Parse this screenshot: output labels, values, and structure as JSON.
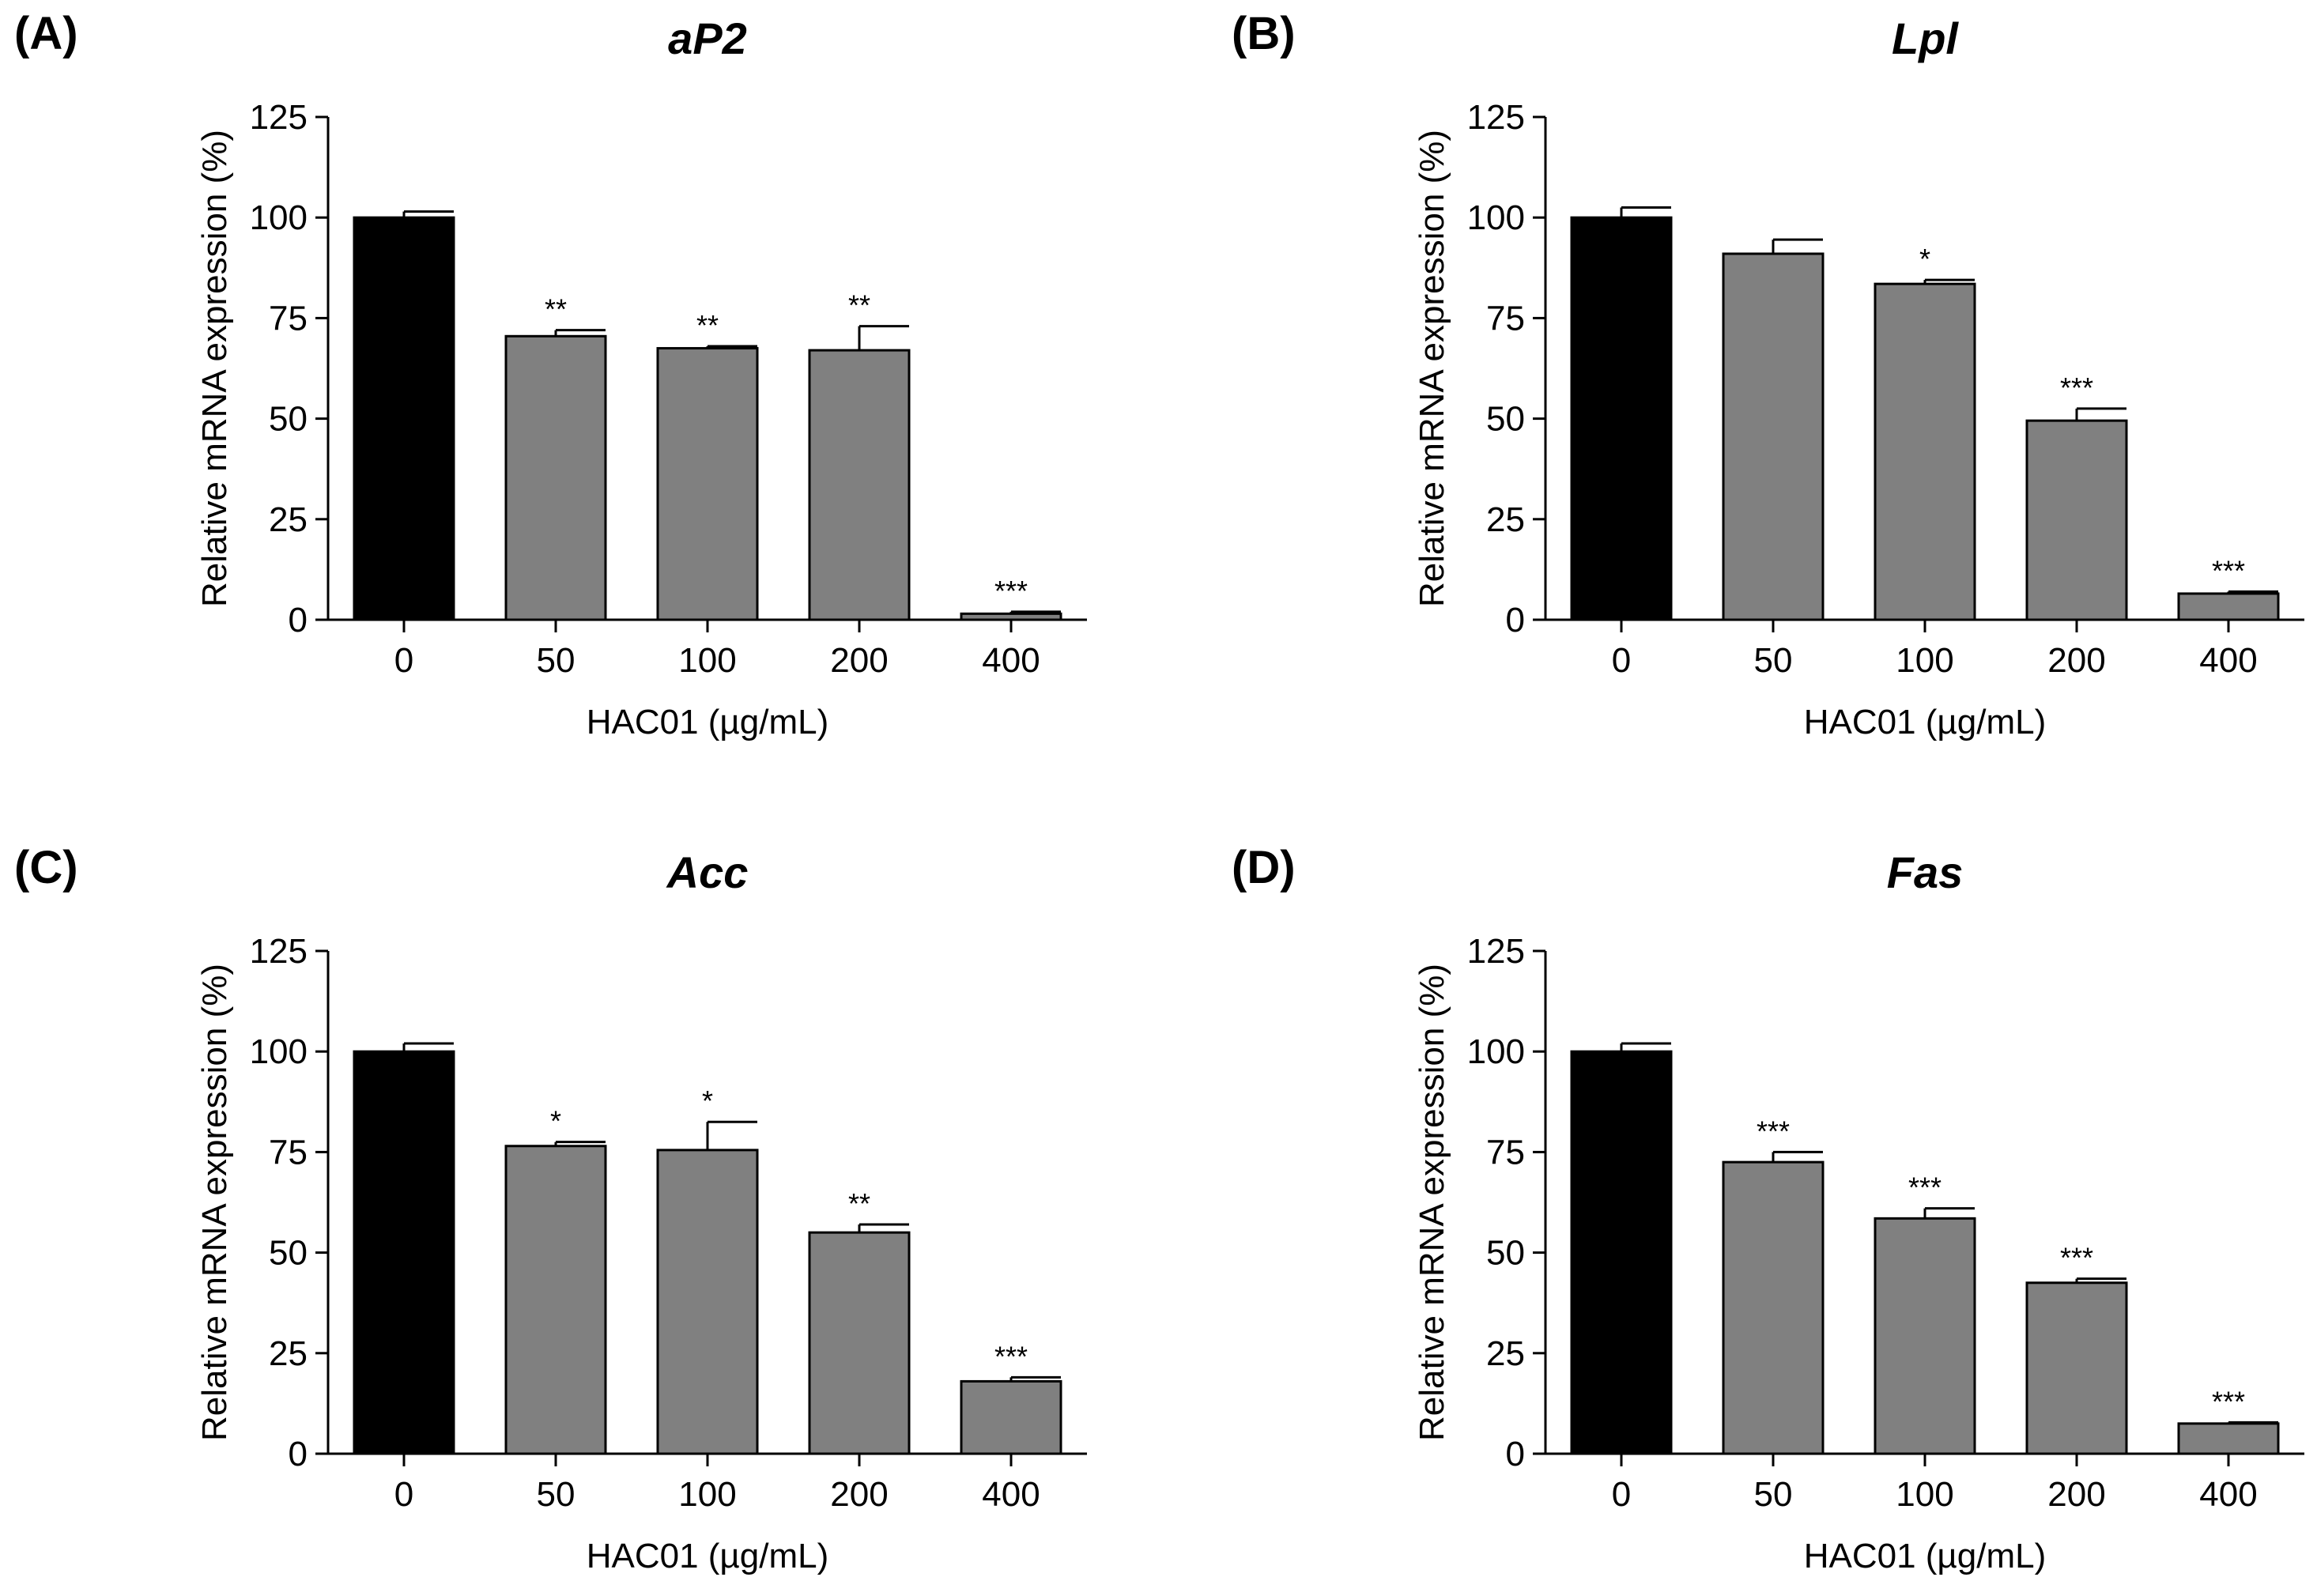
{
  "figure": {
    "xlabel": "HAC01 (µg/mL)",
    "ylabel": "Relative mRNA expression (%)",
    "colors": {
      "control": "#000000",
      "treatment": "#808080",
      "edge": "#000000"
    }
  },
  "chart_data": [
    {
      "type": "bar",
      "panel": "(A)",
      "title": "aP2",
      "categories": [
        "0",
        "50",
        "100",
        "200",
        "400"
      ],
      "values": [
        100,
        70.5,
        67.5,
        67,
        1.5
      ],
      "errors": [
        1.5,
        1.5,
        0.5,
        6,
        0.5
      ],
      "significance": [
        "",
        "**",
        "**",
        "**",
        "***"
      ],
      "xlabel": "HAC01 (µg/mL)",
      "ylabel": "Relative mRNA expression (%)",
      "ylim": [
        0,
        125
      ],
      "yticks": [
        0,
        25,
        50,
        75,
        100,
        125
      ]
    },
    {
      "type": "bar",
      "panel": "(B)",
      "title": "Lpl",
      "categories": [
        "0",
        "50",
        "100",
        "200",
        "400"
      ],
      "values": [
        100,
        91,
        83.5,
        49.5,
        6.5
      ],
      "errors": [
        2.5,
        3.5,
        1,
        3,
        0.5
      ],
      "significance": [
        "",
        "",
        "*",
        "***",
        "***"
      ],
      "xlabel": "HAC01 (µg/mL)",
      "ylabel": "Relative mRNA expression (%)",
      "ylim": [
        0,
        125
      ],
      "yticks": [
        0,
        25,
        50,
        75,
        100,
        125
      ]
    },
    {
      "type": "bar",
      "panel": "(C)",
      "title": "Acc",
      "categories": [
        "0",
        "50",
        "100",
        "200",
        "400"
      ],
      "values": [
        100,
        76.5,
        75.5,
        55,
        18
      ],
      "errors": [
        2,
        1,
        7,
        2,
        1
      ],
      "significance": [
        "",
        "*",
        "*",
        "**",
        "***"
      ],
      "xlabel": "HAC01 (µg/mL)",
      "ylabel": "Relative mRNA expression (%)",
      "ylim": [
        0,
        125
      ],
      "yticks": [
        0,
        25,
        50,
        75,
        100,
        125
      ]
    },
    {
      "type": "bar",
      "panel": "(D)",
      "title": "Fas",
      "categories": [
        "0",
        "50",
        "100",
        "200",
        "400"
      ],
      "values": [
        100,
        72.5,
        58.5,
        42.5,
        7.5
      ],
      "errors": [
        2,
        2.5,
        2.5,
        1,
        0.3
      ],
      "significance": [
        "",
        "***",
        "***",
        "***",
        "***"
      ],
      "xlabel": "HAC01 (µg/mL)",
      "ylabel": "Relative mRNA expression (%)",
      "ylim": [
        0,
        125
      ],
      "yticks": [
        0,
        25,
        50,
        75,
        100,
        125
      ]
    }
  ]
}
